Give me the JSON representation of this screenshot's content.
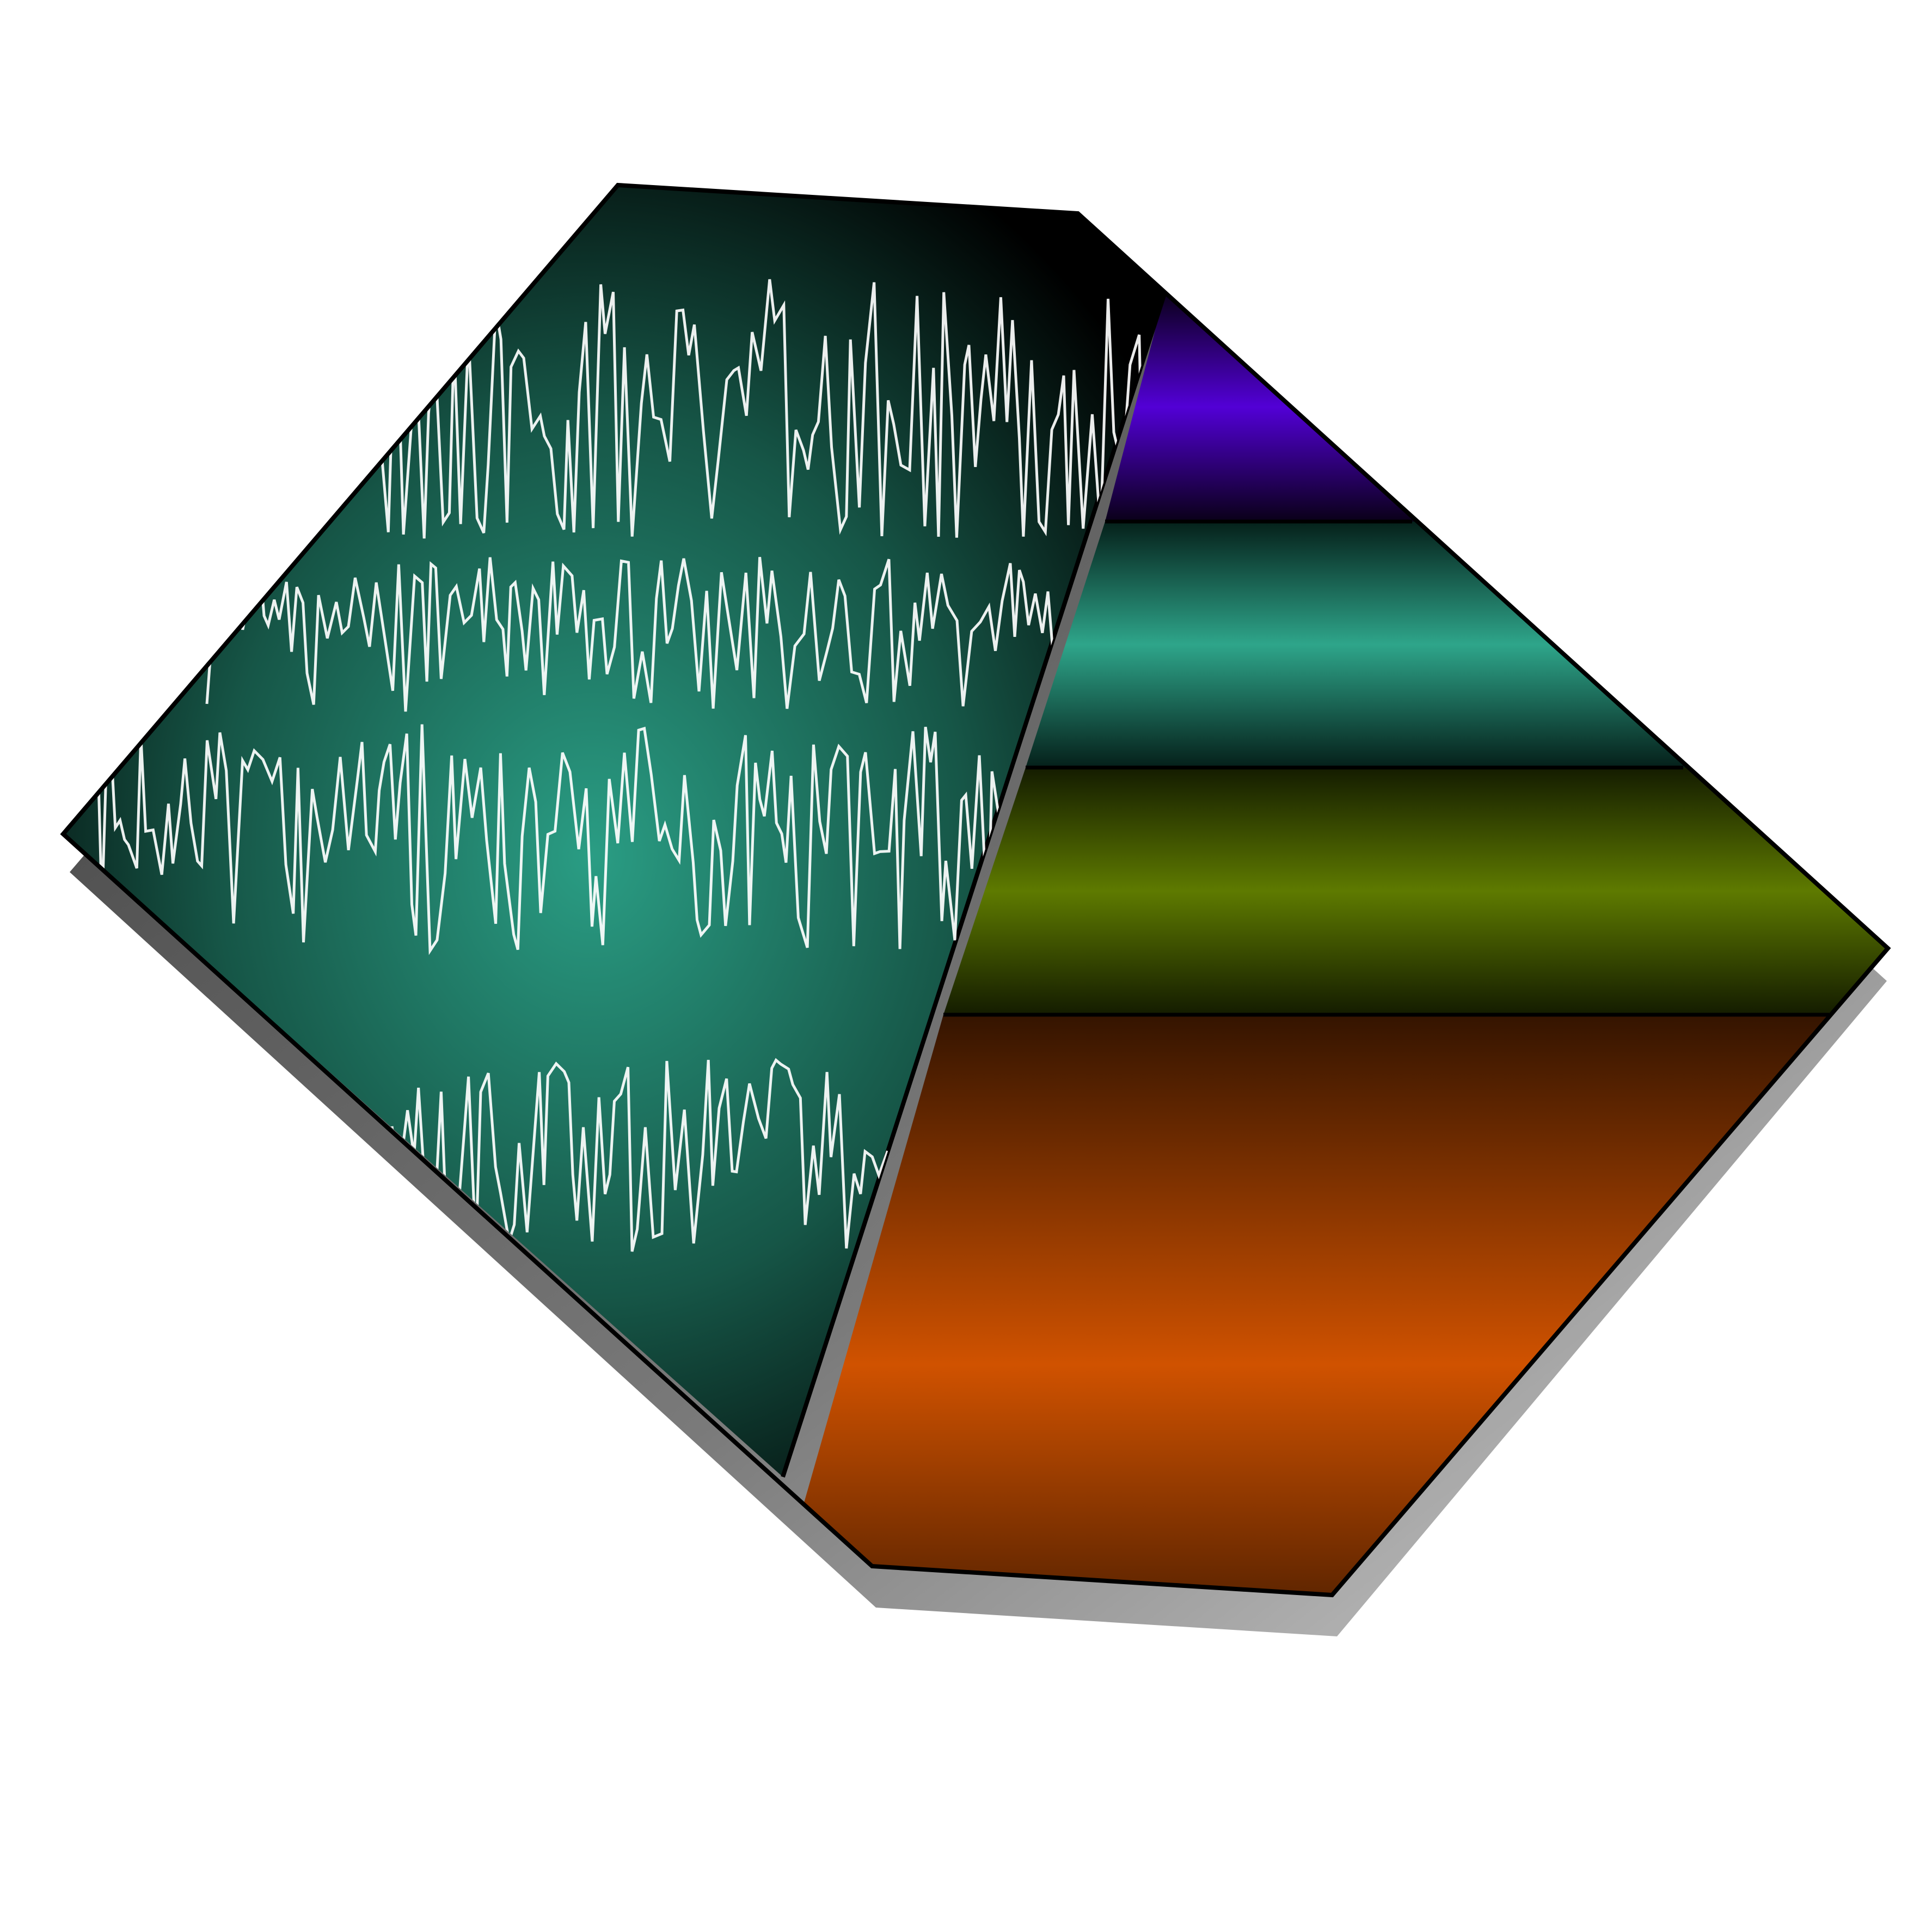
{
  "logo": {
    "description_icon": "eeg-waveform-logo-icon",
    "colors": {
      "background": "#ffffff",
      "outline": "#000000",
      "wave_panel_center": "#2a9d84",
      "wave_panel_edge": "#000000",
      "waveform_stroke": "#ffffff",
      "shadow": "#555555",
      "band_purple": "#5200d6",
      "band_teal": "#2ea58a",
      "band_olive": "#5e7a00",
      "band_orange": "#d05200"
    },
    "waveform_traces": 4,
    "color_bands": [
      {
        "name": "purple-band",
        "color": "#5200d6"
      },
      {
        "name": "teal-band",
        "color": "#2ea58a"
      },
      {
        "name": "olive-band",
        "color": "#5e7a00"
      },
      {
        "name": "orange-band",
        "color": "#d05200"
      }
    ]
  }
}
